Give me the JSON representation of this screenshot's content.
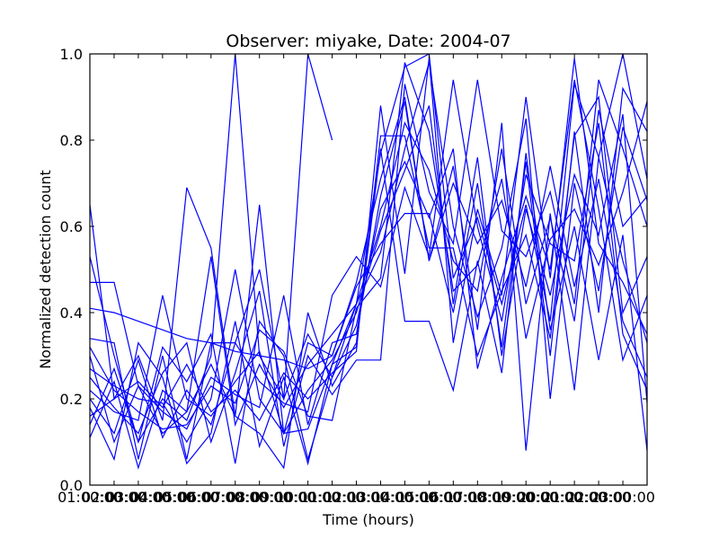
{
  "chart_data": {
    "type": "line",
    "title": "Observer: miyake, Date: 2004-07",
    "xlabel": "Time (hours)",
    "ylabel": "Normalized detection count",
    "xlim": [
      1,
      24
    ],
    "ylim": [
      0.0,
      1.0
    ],
    "xticks": [
      {
        "value": 1,
        "label": "01:00:00"
      },
      {
        "value": 2,
        "label": "02:00:00"
      },
      {
        "value": 3,
        "label": "03:00:00"
      },
      {
        "value": 4,
        "label": "04:00:00"
      },
      {
        "value": 5,
        "label": "05:00:00"
      },
      {
        "value": 6,
        "label": "06:00:00"
      },
      {
        "value": 7,
        "label": "07:00:00"
      },
      {
        "value": 8,
        "label": "08:00:00"
      },
      {
        "value": 9,
        "label": "09:00:00"
      },
      {
        "value": 10,
        "label": "10:00:00"
      },
      {
        "value": 11,
        "label": "11:00:00"
      },
      {
        "value": 12,
        "label": "12:00:00"
      },
      {
        "value": 13,
        "label": "13:00:00"
      },
      {
        "value": 14,
        "label": "14:00:00"
      },
      {
        "value": 15,
        "label": "15:00:00"
      },
      {
        "value": 16,
        "label": "16:00:00"
      },
      {
        "value": 17,
        "label": "17:00:00"
      },
      {
        "value": 18,
        "label": "18:00:00"
      },
      {
        "value": 19,
        "label": "19:00:00"
      },
      {
        "value": 20,
        "label": "20:00:00"
      },
      {
        "value": 21,
        "label": "21:00:00"
      },
      {
        "value": 22,
        "label": "22:00:00"
      },
      {
        "value": 23,
        "label": "23:00:00"
      }
    ],
    "yticks": [
      {
        "value": 0.0,
        "label": "0.0"
      },
      {
        "value": 0.2,
        "label": "0.2"
      },
      {
        "value": 0.4,
        "label": "0.4"
      },
      {
        "value": 0.6,
        "label": "0.6"
      },
      {
        "value": 0.8,
        "label": "0.8"
      },
      {
        "value": 1.0,
        "label": "1.0"
      }
    ],
    "grid": false,
    "color": "#0000ff",
    "x": [
      1,
      2,
      3,
      4,
      5,
      6,
      7,
      8,
      9,
      10,
      11,
      12,
      13,
      14,
      15,
      16,
      17,
      18,
      19,
      20,
      21,
      22,
      23,
      24
    ],
    "series": [
      {
        "values": [
          0.65,
          0.2,
          0.3,
          0.15,
          0.69,
          0.55,
          0.16,
          0.65,
          0.12,
          0.13,
          0.28,
          0.32,
          0.81,
          0.81,
          0.55,
          0.55,
          0.3,
          0.45,
          0.58,
          0.34,
          0.81,
          0.9,
          0.4,
          0.53
        ]
      },
      {
        "values": [
          0.53,
          0.3,
          0.1,
          0.2,
          0.15,
          0.3,
          1.0,
          0.3,
          0.2,
          1.0,
          0.8,
          null,
          null,
          null,
          null,
          null,
          null,
          null,
          null,
          null,
          null,
          null,
          null,
          null
        ]
      },
      {
        "values": [
          0.47,
          0.47,
          0.23,
          0.12,
          0.17,
          0.53,
          0.14,
          0.28,
          0.18,
          0.28,
          0.35,
          0.42,
          0.77,
          0.97,
          1.0,
          0.48,
          0.62,
          0.42,
          0.65,
          0.38,
          0.93,
          0.76,
          1.0,
          0.71
        ]
      },
      {
        "values": [
          0.41,
          0.4,
          0.38,
          0.36,
          0.34,
          0.33,
          0.31,
          0.3,
          0.29,
          0.27,
          0.3,
          0.46,
          0.56,
          0.63,
          0.63,
          0.4,
          0.7,
          0.32,
          0.75,
          0.3,
          0.82,
          0.4,
          0.92,
          0.82
        ]
      },
      {
        "values": [
          0.34,
          0.33,
          0.06,
          0.3,
          0.06,
          0.33,
          0.33,
          0.5,
          0.2,
          0.35,
          0.25,
          0.42,
          0.6,
          0.84,
          0.73,
          0.52,
          0.45,
          0.78,
          0.42,
          0.62,
          0.38,
          0.87,
          0.6,
          0.67
        ]
      },
      {
        "values": [
          0.3,
          0.1,
          0.23,
          0.17,
          0.13,
          0.25,
          0.21,
          0.18,
          0.44,
          0.14,
          0.33,
          0.35,
          0.67,
          0.89,
          0.52,
          0.7,
          0.56,
          0.66,
          0.46,
          0.74,
          0.46,
          0.71,
          0.38,
          0.25
        ]
      },
      {
        "values": [
          0.27,
          0.23,
          0.2,
          0.19,
          0.1,
          0.2,
          0.5,
          0.2,
          0.12,
          0.22,
          0.29,
          0.4,
          0.59,
          0.73,
          0.88,
          0.42,
          0.76,
          0.3,
          0.64,
          0.44,
          0.72,
          0.58,
          0.86,
          0.19
        ]
      },
      {
        "values": [
          0.22,
          0.17,
          0.15,
          0.44,
          0.2,
          0.16,
          0.24,
          0.31,
          0.12,
          0.33,
          0.3,
          0.47,
          0.71,
          0.9,
          0.52,
          0.74,
          0.36,
          0.84,
          0.08,
          0.63,
          0.22,
          0.76,
          0.52,
          0.33
        ]
      },
      {
        "values": [
          0.18,
          0.06,
          0.33,
          0.25,
          0.05,
          0.12,
          0.38,
          0.09,
          0.25,
          0.05,
          0.28,
          0.42,
          0.54,
          0.78,
          0.98,
          0.6,
          0.39,
          0.55,
          0.85,
          0.2,
          0.7,
          0.45,
          0.83,
          0.66
        ]
      },
      {
        "values": [
          0.14,
          0.27,
          0.1,
          0.32,
          0.24,
          0.35,
          0.05,
          0.38,
          0.3,
          0.06,
          0.25,
          0.37,
          0.64,
          0.75,
          0.62,
          0.78,
          0.27,
          0.48,
          0.67,
          0.5,
          0.94,
          0.64,
          0.29,
          0.44
        ]
      },
      {
        "values": [
          0.11,
          0.24,
          0.04,
          0.22,
          0.17,
          0.28,
          0.16,
          0.12,
          0.04,
          0.4,
          0.23,
          0.33,
          0.78,
          0.38,
          0.38,
          0.22,
          0.52,
          0.26,
          0.77,
          0.36,
          0.6,
          0.29,
          0.58,
          0.08
        ]
      },
      {
        "values": [
          0.2,
          0.12,
          0.29,
          0.11,
          0.22,
          0.14,
          0.33,
          0.24,
          0.19,
          0.17,
          0.44,
          0.53,
          0.46,
          0.69,
          0.53,
          0.94,
          0.6,
          0.38,
          0.72,
          0.56,
          0.52,
          0.84,
          0.35,
          0.22
        ]
      },
      {
        "values": [
          0.25,
          0.18,
          0.12,
          0.26,
          0.33,
          0.1,
          0.26,
          0.45,
          0.09,
          0.3,
          0.21,
          0.29,
          0.29,
          0.93,
          0.68,
          0.56,
          0.94,
          0.59,
          0.53,
          0.68,
          0.42,
          0.94,
          0.78,
          0.6
        ]
      },
      {
        "values": [
          0.32,
          0.22,
          0.17,
          0.13,
          0.14,
          0.23,
          0.19,
          0.36,
          0.31,
          0.16,
          0.15,
          0.41,
          0.48,
          0.98,
          0.82,
          0.45,
          0.51,
          0.71,
          0.34,
          0.57,
          0.64,
          0.51,
          0.68,
          0.89
        ]
      },
      {
        "values": [
          0.16,
          0.2,
          0.24,
          0.18,
          0.28,
          0.17,
          0.22,
          0.15,
          0.26,
          0.2,
          0.26,
          0.31,
          0.88,
          0.49,
          0.99,
          0.33,
          0.64,
          0.44,
          0.9,
          0.48,
          0.99,
          0.56,
          0.47,
          0.35
        ]
      }
    ]
  }
}
